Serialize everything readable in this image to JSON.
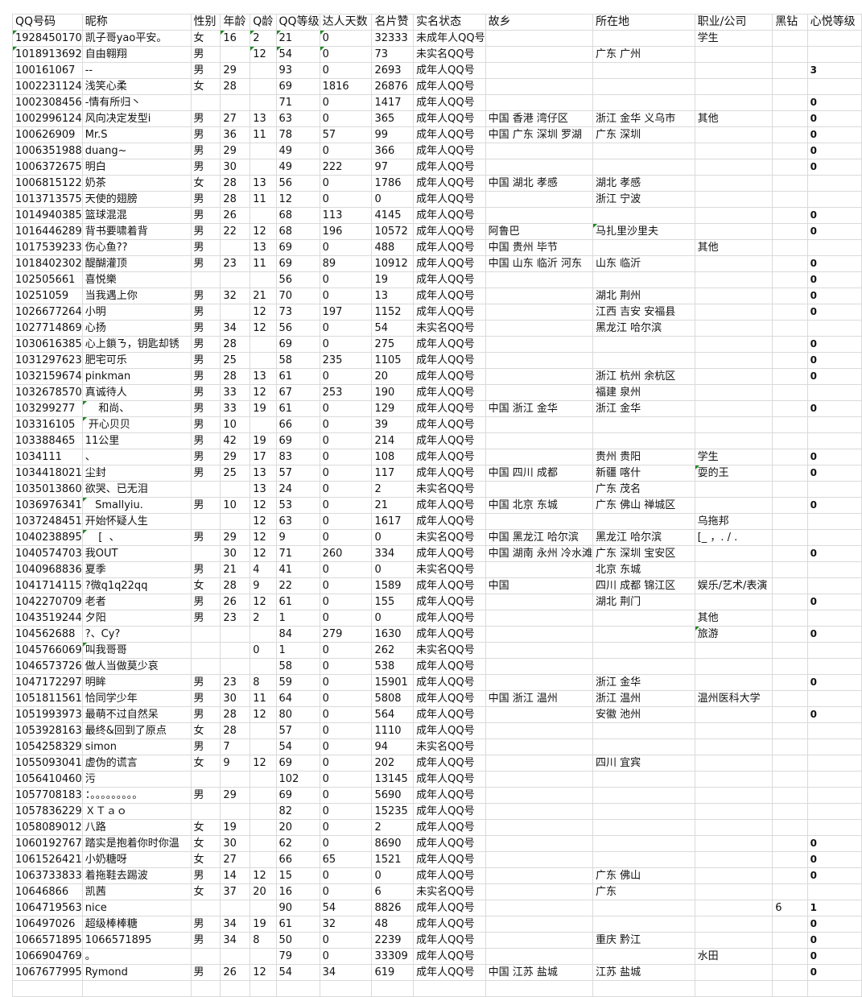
{
  "columns": [
    "QQ号码",
    "昵称",
    "性别",
    "年龄",
    "Q龄",
    "QQ等级",
    "达人天数",
    "名片赞",
    "实名状态",
    "故乡",
    "所在地",
    "职业/公司",
    "黑钻",
    "心悦等级"
  ],
  "rows": [
    [
      "1928450170",
      "凯子哥yao平安。",
      "女",
      "16",
      "2",
      "21",
      "0",
      "32333",
      "未成年人QQ号",
      "",
      "",
      "学生",
      "",
      ""
    ],
    [
      "1018913692",
      "自由翱翔",
      "男",
      "",
      "12",
      "54",
      "0",
      "73",
      "未实名QQ号",
      "",
      "广东 广州",
      "",
      "",
      ""
    ],
    [
      "100161067",
      "--",
      "男",
      "29",
      "",
      "93",
      "0",
      "2693",
      "成年人QQ号",
      "",
      "",
      "",
      "",
      "3"
    ],
    [
      "1002231124",
      "浅笑心柔",
      "女",
      "28",
      "",
      "69",
      "1816",
      "26876",
      "成年人QQ号",
      "",
      "",
      "",
      "",
      ""
    ],
    [
      "1002308456",
      "-情有所归丶",
      "",
      "",
      "",
      "71",
      "0",
      "1417",
      "成年人QQ号",
      "",
      "",
      "",
      "",
      "0"
    ],
    [
      "1002996124",
      "风向决定发型i",
      "男",
      "27",
      "13",
      "63",
      "0",
      "365",
      "成年人QQ号",
      "中国 香港 湾仔区",
      "浙江 金华 义乌市",
      "其他",
      "",
      "0"
    ],
    [
      "100626909",
      "Mr.S",
      "男",
      "36",
      "11",
      "78",
      "57",
      "99",
      "成年人QQ号",
      "中国 广东 深圳 罗湖",
      "广东 深圳",
      "",
      "",
      "0"
    ],
    [
      "1006351988",
      "duang~",
      "男",
      "29",
      "",
      "49",
      "0",
      "366",
      "成年人QQ号",
      "",
      "",
      "",
      "",
      "0"
    ],
    [
      "1006372675",
      "明白",
      "男",
      "30",
      "",
      "49",
      "222",
      "97",
      "成年人QQ号",
      "",
      "",
      "",
      "",
      "0"
    ],
    [
      "1006815122",
      "奶茶",
      "女",
      "28",
      "13",
      "56",
      "0",
      "1786",
      "成年人QQ号",
      "中国 湖北 孝感",
      "湖北 孝感",
      "",
      "",
      ""
    ],
    [
      "1013713575",
      "天使的翅膀",
      "男",
      "28",
      "11",
      "12",
      "0",
      "0",
      "成年人QQ号",
      "",
      "浙江 宁波",
      "",
      "",
      ""
    ],
    [
      "1014940385",
      "篮球混混",
      "男",
      "26",
      "",
      "68",
      "113",
      "4145",
      "成年人QQ号",
      "",
      "",
      "",
      "",
      "0"
    ],
    [
      "1016446289",
      "背书要啸着背",
      "男",
      "22",
      "12",
      "68",
      "196",
      "10572",
      "成年人QQ号",
      "阿鲁巴",
      "马扎里沙里夫",
      "",
      "",
      "0"
    ],
    [
      "1017539233",
      "伤心鱼??",
      "男",
      "",
      "13",
      "69",
      "0",
      "488",
      "成年人QQ号",
      "中国 贵州 毕节",
      "",
      "其他",
      "",
      ""
    ],
    [
      "1018402302",
      "醍醐灌顶",
      "男",
      "23",
      "11",
      "69",
      "89",
      "10912",
      "成年人QQ号",
      "中国 山东 临沂 河东",
      "山东 临沂",
      "",
      "",
      "0"
    ],
    [
      "102505661",
      "喜悦樂",
      "",
      "",
      "",
      "56",
      "0",
      "19",
      "成年人QQ号",
      "",
      "",
      "",
      "",
      "0"
    ],
    [
      "10251059",
      "当我遇上你",
      "男",
      "32",
      "21",
      "70",
      "0",
      "13",
      "成年人QQ号",
      "",
      "湖北 荆州",
      "",
      "",
      "0"
    ],
    [
      "1026677264",
      "小明",
      "男",
      "",
      "12",
      "73",
      "197",
      "1152",
      "成年人QQ号",
      "",
      "江西 吉安 安福县",
      "",
      "",
      "0"
    ],
    [
      "1027714869",
      "心扬",
      "男",
      "34",
      "12",
      "56",
      "0",
      "54",
      "未实名QQ号",
      "",
      "黑龙江 哈尔滨",
      "",
      "",
      ""
    ],
    [
      "1030616385",
      "心上鎖ㄋ，钥匙却锈",
      "男",
      "28",
      "",
      "69",
      "0",
      "275",
      "成年人QQ号",
      "",
      "",
      "",
      "",
      "0"
    ],
    [
      "1031297623",
      "肥宅可乐",
      "男",
      "25",
      "",
      "58",
      "235",
      "1105",
      "成年人QQ号",
      "",
      "",
      "",
      "",
      "0"
    ],
    [
      "1032159674",
      "pinkman",
      "男",
      "28",
      "13",
      "61",
      "0",
      "20",
      "成年人QQ号",
      "",
      "浙江 杭州 余杭区",
      "",
      "",
      "0"
    ],
    [
      "1032678570",
      "真诚待人",
      "男",
      "33",
      "12",
      "67",
      "253",
      "190",
      "成年人QQ号",
      "",
      "福建 泉州",
      "",
      "",
      ""
    ],
    [
      "103299277",
      "    和尚、",
      "男",
      "33",
      "19",
      "61",
      "0",
      "129",
      "成年人QQ号",
      "中国 浙江 金华",
      "浙江 金华",
      "",
      "",
      "0"
    ],
    [
      "103316105",
      " 开心贝贝",
      "男",
      "10",
      "",
      "66",
      "0",
      "39",
      "成年人QQ号",
      "",
      "",
      "",
      "",
      ""
    ],
    [
      "103388465",
      "11公里",
      "男",
      "42",
      "19",
      "69",
      "0",
      "214",
      "成年人QQ号",
      "",
      "",
      "",
      "",
      ""
    ],
    [
      "1034111",
      "、",
      "男",
      "29",
      "17",
      "83",
      "0",
      "108",
      "成年人QQ号",
      "",
      "贵州 贵阳",
      "学生",
      "",
      "0"
    ],
    [
      "1034418021",
      "尘封",
      "男",
      "25",
      "13",
      "57",
      "0",
      "117",
      "成年人QQ号",
      "中国 四川 成都",
      "新疆 喀什",
      "耍的王",
      "",
      "0"
    ],
    [
      "1035013860",
      "欲哭、已无泪",
      "",
      "",
      "13",
      "24",
      "0",
      "2",
      "未实名QQ号",
      "",
      "广东 茂名",
      "",
      "",
      ""
    ],
    [
      "1036976341",
      "   Smallyiu.",
      "男",
      "10",
      "12",
      "53",
      "0",
      "21",
      "成年人QQ号",
      "中国 北京 东城",
      "广东 佛山 禅城区",
      "",
      "",
      "0"
    ],
    [
      "1037248451",
      "开始怀疑人生",
      "",
      "",
      "12",
      "63",
      "0",
      "1617",
      "成年人QQ号",
      "",
      "",
      "乌拖邦",
      "",
      ""
    ],
    [
      "1040238895",
      "    [  、",
      "男",
      "29",
      "12",
      "9",
      "0",
      "0",
      "未实名QQ号",
      "中国 黑龙江 哈尔滨",
      "黑龙江 哈尔滨",
      "[_ ，. / .",
      "",
      ""
    ],
    [
      "1040574703",
      "我OUT",
      "",
      "30",
      "12",
      "71",
      "260",
      "334",
      "成年人QQ号",
      "中国 湖南 永州 冷水滩",
      "广东 深圳 宝安区",
      "",
      "",
      "0"
    ],
    [
      "1040968836",
      "夏季",
      "男",
      "21",
      "4",
      "41",
      "0",
      "0",
      "未实名QQ号",
      "",
      "北京 东城",
      "",
      "",
      ""
    ],
    [
      "1041714115",
      "?微q1q22qq",
      "女",
      "28",
      "9",
      "22",
      "0",
      "1589",
      "成年人QQ号",
      "中国",
      "四川 成都 锦江区",
      "娱乐/艺术/表演",
      "",
      ""
    ],
    [
      "1042270709",
      "老者",
      "男",
      "26",
      "12",
      "61",
      "0",
      "155",
      "成年人QQ号",
      "",
      "湖北 荆门",
      "",
      "",
      "0"
    ],
    [
      "1043519244",
      "夕阳",
      "男",
      "23",
      "2",
      "1",
      "0",
      "0",
      "成年人QQ号",
      "",
      "",
      "其他",
      "",
      ""
    ],
    [
      "104562688",
      "?、Cy?",
      "",
      "",
      "",
      "84",
      "279",
      "1630",
      "成年人QQ号",
      "",
      "",
      "旅游",
      "",
      "0"
    ],
    [
      "1045766069",
      "叫我哥哥",
      "",
      "",
      "0",
      "1",
      "0",
      "262",
      "未实名QQ号",
      "",
      "",
      "",
      "",
      ""
    ],
    [
      "1046573726",
      "做人当做莫少哀",
      "",
      "",
      "",
      "58",
      "0",
      "538",
      "成年人QQ号",
      "",
      "",
      "",
      "",
      ""
    ],
    [
      "1047172297",
      "明眸",
      "男",
      "23",
      "8",
      "59",
      "0",
      "15901",
      "成年人QQ号",
      "",
      "浙江 金华",
      "",
      "",
      "0"
    ],
    [
      "1051811561",
      "恰同学少年",
      "男",
      "30",
      "11",
      "64",
      "0",
      "5808",
      "成年人QQ号",
      "中国 浙江 温州",
      "浙江 温州",
      "温州医科大学",
      "",
      ""
    ],
    [
      "1051993973",
      "最萌不过自然呆",
      "男",
      "28",
      "12",
      "80",
      "0",
      "564",
      "成年人QQ号",
      "",
      "安徽 池州",
      "",
      "",
      "0"
    ],
    [
      "1053928163",
      "最终&回到了原点",
      "女",
      "28",
      "",
      "57",
      "0",
      "1110",
      "成年人QQ号",
      "",
      "",
      "",
      "",
      ""
    ],
    [
      "1054258329",
      "simon",
      "男",
      "7",
      "",
      "54",
      "0",
      "94",
      "未实名QQ号",
      "",
      "",
      "",
      "",
      ""
    ],
    [
      "1055093041",
      "虚伪的谎言",
      "女",
      "9",
      "12",
      "69",
      "0",
      "202",
      "成年人QQ号",
      "",
      "四川 宜宾",
      "",
      "",
      ""
    ],
    [
      "1056410460",
      "污",
      "",
      "",
      "",
      "102",
      "0",
      "13145",
      "成年人QQ号",
      "",
      "",
      "",
      "",
      ""
    ],
    [
      "1057708183",
      "：。。。。。。。。。",
      "男",
      "29",
      "",
      "69",
      "0",
      "5690",
      "成年人QQ号",
      "",
      "",
      "",
      "",
      ""
    ],
    [
      "1057836229",
      "ＸＴａｏ",
      "",
      "",
      "",
      "82",
      "0",
      "15235",
      "成年人QQ号",
      "",
      "",
      "",
      "",
      ""
    ],
    [
      "1058089012",
      "八路",
      "女",
      "19",
      "",
      "20",
      "0",
      "2",
      "成年人QQ号",
      "",
      "",
      "",
      "",
      ""
    ],
    [
      "1060192767",
      "踏实是抱着你时你温",
      "女",
      "30",
      "",
      "62",
      "0",
      "8690",
      "成年人QQ号",
      "",
      "",
      "",
      "",
      "0"
    ],
    [
      "1061526421",
      "小奶糖呀",
      "女",
      "27",
      "",
      "66",
      "65",
      "1521",
      "成年人QQ号",
      "",
      "",
      "",
      "",
      "0"
    ],
    [
      "1063733833",
      "着拖鞋去踢波",
      "男",
      "14",
      "12",
      "15",
      "0",
      "0",
      "成年人QQ号",
      "",
      "广东 佛山",
      "",
      "",
      "0"
    ],
    [
      "10646866",
      "凯茜",
      "女",
      "37",
      "20",
      "16",
      "0",
      "6",
      "未实名QQ号",
      "",
      "广东",
      "",
      "",
      ""
    ],
    [
      "1064719563",
      "nice",
      "",
      "",
      "",
      "90",
      "54",
      "8826",
      "成年人QQ号",
      "",
      "",
      "",
      "6",
      "1"
    ],
    [
      "106497026",
      "超级棒棒糖",
      "男",
      "34",
      "19",
      "61",
      "32",
      "48",
      "成年人QQ号",
      "",
      "",
      "",
      "",
      "0"
    ],
    [
      "1066571895",
      "1066571895",
      "男",
      "34",
      "8",
      "50",
      "0",
      "2239",
      "成年人QQ号",
      "",
      "重庆 黔江",
      "",
      "",
      "0"
    ],
    [
      "1066904769",
      "。",
      "",
      "",
      "",
      "79",
      "0",
      "33309",
      "成年人QQ号",
      "",
      "",
      "水田",
      "",
      "0"
    ],
    [
      "1067677995",
      "Rymond",
      "男",
      "26",
      "12",
      "54",
      "34",
      "619",
      "成年人QQ号",
      "中国 江苏 盐城",
      "江苏 盐城",
      "",
      "",
      "0"
    ],
    [
      "",
      "",
      "",
      "",
      "",
      "",
      "",
      "",
      "",
      "",
      "",
      "",
      "",
      ""
    ]
  ],
  "flagged_cells": [
    [
      0,
      0
    ],
    [
      0,
      3
    ],
    [
      0,
      4
    ],
    [
      0,
      5
    ],
    [
      0,
      6
    ],
    [
      1,
      0
    ],
    [
      1,
      4
    ],
    [
      1,
      5
    ],
    [
      1,
      6
    ],
    [
      12,
      10
    ],
    [
      23,
      1
    ],
    [
      24,
      1
    ],
    [
      27,
      11
    ],
    [
      29,
      1
    ],
    [
      31,
      1
    ],
    [
      37,
      11
    ],
    [
      38,
      1
    ]
  ],
  "colors": {
    "grid": "#dadada",
    "flag": "#1e8a1e",
    "text": "#111111"
  }
}
